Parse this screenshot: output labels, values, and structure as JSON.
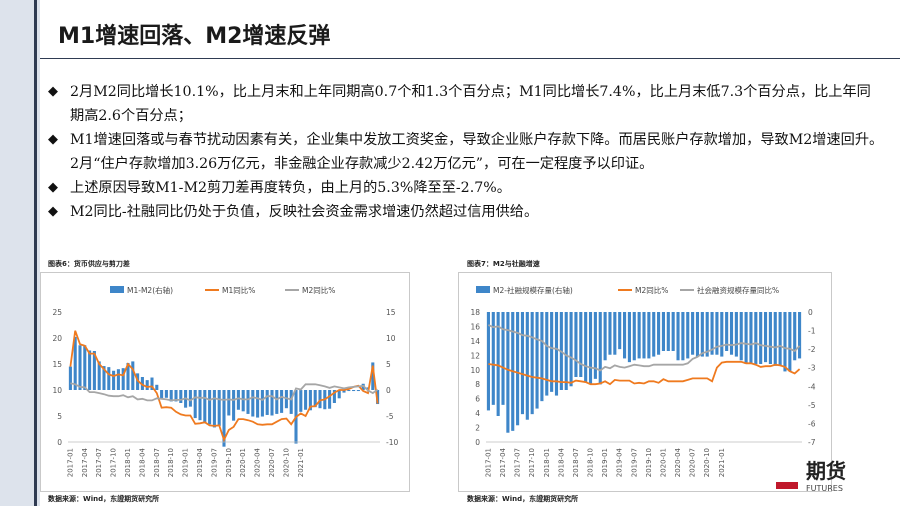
{
  "slide": {
    "title": "M1增速回落、M2增速反弹",
    "bullets": [
      "2月M2同比增长10.1%，比上月末和上年同期高0.7个和1.3个百分点；M1同比增长7.4%，比上月末低7.3个百分点，比上年同期高2.6个百分点；",
      "M1增速回落或与春节扰动因素有关，企业集中发放工资奖金，导致企业账户存款下降。而居民账户存款增加，导致M2增速回升。2月“住户存款增加3.26万亿元，非金融企业存款减少2.42万亿元”，可在一定程度予以印证。",
      "上述原因导致M1-M2剪刀差再度转负，由上月的5.3%降至至-2.7%。",
      "M2同比-社融同比仍处于负值，反映社会资金需求增速仍然超过信用供给。"
    ],
    "logo_text": "期货",
    "logo_subtext": "FUTURES"
  },
  "colors": {
    "bar": "#3e86c9",
    "orange": "#ef7a1f",
    "gray": "#a6a6a6",
    "border": "#c9c9c9"
  },
  "chart_data": [
    {
      "type": "bar+line",
      "caption": "图表6：货币供应与剪刀差",
      "source": "数据来源：Wind，东證期货研究所",
      "legend": [
        "M1-M2(右轴)",
        "M1同比%",
        "M2同比%"
      ],
      "x_ticks": [
        "2017-01",
        "2017-04",
        "2017-07",
        "2017-10",
        "2018-01",
        "2018-04",
        "2018-07",
        "2018-10",
        "2019-01",
        "2019-04",
        "2019-07",
        "2019-10",
        "2020-01",
        "2020-04",
        "2020-07",
        "2020-10",
        "2021-01"
      ],
      "ylim_left": [
        0,
        25
      ],
      "yticks_left": [
        0,
        5,
        10,
        15,
        20,
        25
      ],
      "ylim_right": [
        -10,
        15
      ],
      "yticks_right": [
        -10,
        -5,
        0,
        5,
        10,
        15
      ],
      "series": [
        {
          "name": "M1-M2(右轴)",
          "kind": "bar",
          "axis": "right",
          "values": [
            4.5,
            10.2,
            8.6,
            8.6,
            7.6,
            7.5,
            5.5,
            4.6,
            4.4,
            3.7,
            4.0,
            4.2,
            5.2,
            5.5,
            3.2,
            2.5,
            1.9,
            2.4,
            1.0,
            -1.7,
            -1.5,
            -2.2,
            -2.2,
            -2.5,
            -3.4,
            -3.2,
            -5.4,
            -5.8,
            -6.4,
            -6.6,
            -7.2,
            -6.9,
            -10.9,
            -4.9,
            -5.9,
            -3.8,
            -4.1,
            -4.6,
            -5.1,
            -5.3,
            -5.1,
            -4.8,
            -4.9,
            -4.6,
            -4.4,
            -3.5,
            -4.6,
            -10.3,
            -4.2,
            -3.8,
            -3.9,
            -3.3,
            -3.5,
            -3.7,
            -3.6,
            -2.5,
            -1.6,
            -0.5,
            -0.2,
            -0.2,
            -0.2,
            1.2,
            0.5,
            5.3,
            -2.7
          ]
        },
        {
          "name": "M1同比%",
          "kind": "line",
          "axis": "left",
          "values": [
            14.5,
            21.4,
            18.8,
            18.5,
            17.0,
            17.0,
            15.0,
            14.0,
            13.0,
            12.7,
            13.0,
            12.8,
            15.0,
            14.0,
            11.8,
            11.0,
            10.6,
            10.7,
            9.4,
            6.6,
            6.7,
            6.6,
            5.8,
            5.3,
            5.1,
            5.1,
            3.5,
            3.6,
            3.8,
            3.2,
            3.1,
            3.2,
            0.4,
            2.3,
            2.9,
            4.4,
            4.4,
            4.2,
            3.9,
            3.4,
            3.3,
            3.4,
            3.4,
            3.9,
            4.4,
            4.5,
            3.4,
            4.8,
            5.5,
            5.0,
            6.8,
            6.9,
            8.0,
            8.2,
            8.8,
            9.5,
            10.0,
            10.0,
            10.2,
            10.6,
            10.8,
            9.8,
            9.4,
            14.7,
            7.4
          ]
        },
        {
          "name": "M2同比%",
          "kind": "line",
          "axis": "left",
          "values": [
            11.3,
            11.1,
            10.6,
            10.5,
            9.6,
            9.6,
            9.4,
            9.2,
            8.9,
            8.8,
            8.8,
            9.0,
            8.6,
            8.8,
            8.2,
            8.3,
            8.0,
            8.0,
            8.4,
            8.3,
            8.2,
            8.0,
            8.1,
            8.1,
            8.4,
            8.0,
            8.6,
            8.5,
            8.5,
            8.1,
            8.4,
            8.2,
            8.1,
            8.2,
            8.1,
            8.4,
            8.2,
            8.2,
            8.6,
            8.4,
            8.1,
            8.8,
            8.8,
            8.2,
            8.7,
            8.4,
            8.2,
            10.3,
            10.1,
            11.1,
            11.1,
            11.1,
            10.9,
            10.7,
            10.4,
            10.7,
            10.5,
            10.3,
            10.5,
            10.6,
            10.7,
            10.8,
            9.9,
            9.4,
            10.1
          ]
        }
      ]
    },
    {
      "type": "bar+line",
      "caption": "图表7：M2与社融增速",
      "source": "数据来源：Wind，东證期货研究所",
      "legend": [
        "M2-社融规模存量(右轴)",
        "M2同比%",
        "社会融资规模存量同比%"
      ],
      "x_ticks": [
        "2017-01",
        "2017-04",
        "2017-07",
        "2017-10",
        "2018-01",
        "2018-04",
        "2018-07",
        "2018-10",
        "2019-01",
        "2019-04",
        "2019-07",
        "2019-10",
        "2020-01",
        "2020-04",
        "2020-07",
        "2020-10",
        "2021-01"
      ],
      "ylim_left": [
        0,
        18
      ],
      "yticks_left": [
        0,
        2,
        4,
        6,
        8,
        10,
        12,
        14,
        16,
        18
      ],
      "ylim_right": [
        -7,
        0
      ],
      "yticks_right": [
        -7,
        -6,
        -5,
        -4,
        -3,
        -2,
        -1,
        0
      ],
      "series": [
        {
          "name": "M2-社融规模存量(右轴)",
          "kind": "bar",
          "axis": "right",
          "values": [
            -5.3,
            -5.0,
            -5.6,
            -5.0,
            -6.5,
            -6.4,
            -6.1,
            -5.5,
            -5.8,
            -5.5,
            -5.2,
            -4.8,
            -4.5,
            -4.3,
            -4.5,
            -4.2,
            -4.2,
            -4.0,
            -3.5,
            -3.5,
            -3.8,
            -3.9,
            -3.6,
            -3.9,
            -2.6,
            -2.3,
            -2.3,
            -2.0,
            -2.5,
            -2.7,
            -2.6,
            -2.5,
            -2.5,
            -2.5,
            -2.4,
            -2.3,
            -2.1,
            -2.1,
            -2.1,
            -2.6,
            -2.6,
            -2.5,
            -2.3,
            -2.4,
            -2.4,
            -2.4,
            -2.3,
            -2.3,
            -2.4,
            -2.1,
            -2.3,
            -2.4,
            -2.6,
            -2.8,
            -2.8,
            -2.8,
            -2.8,
            -2.7,
            -2.8,
            -2.9,
            -2.9,
            -3.2,
            -3.2,
            -2.6,
            -2.5
          ]
        },
        {
          "name": "M2同比%",
          "kind": "line",
          "axis": "left",
          "values": [
            10.8,
            10.7,
            10.6,
            10.3,
            10.0,
            9.8,
            9.6,
            9.4,
            9.2,
            9.0,
            8.9,
            8.8,
            8.6,
            8.4,
            8.4,
            8.3,
            8.3,
            8.2,
            8.5,
            8.4,
            8.3,
            8.0,
            8.0,
            8.1,
            8.4,
            8.0,
            8.6,
            8.5,
            8.5,
            8.5,
            8.1,
            8.2,
            8.1,
            8.4,
            8.4,
            8.2,
            8.7,
            8.4,
            8.4,
            8.4,
            8.4,
            8.6,
            8.8,
            8.8,
            8.8,
            8.8,
            8.4,
            10.3,
            11.0,
            11.1,
            11.1,
            11.1,
            11.1,
            10.9,
            10.9,
            10.7,
            10.4,
            10.5,
            10.5,
            10.7,
            10.6,
            10.4,
            9.8,
            9.5,
            10.1
          ]
        },
        {
          "name": "社会融资规模存量同比%",
          "kind": "line",
          "axis": "left",
          "values": [
            16.2,
            15.9,
            16.0,
            15.6,
            15.5,
            15.3,
            15.1,
            14.8,
            14.7,
            14.5,
            14.2,
            14.0,
            13.3,
            13.0,
            12.9,
            12.5,
            12.0,
            11.7,
            11.3,
            10.8,
            10.5,
            10.3,
            10.2,
            9.9,
            10.4,
            10.2,
            10.6,
            10.4,
            10.3,
            10.5,
            10.7,
            10.6,
            10.5,
            10.5,
            10.7,
            10.7,
            10.7,
            10.7,
            10.7,
            10.7,
            10.7,
            10.9,
            11.5,
            11.8,
            12.3,
            12.5,
            12.8,
            13.2,
            13.3,
            13.5,
            13.4,
            13.5,
            13.7,
            13.6,
            13.5,
            13.7,
            13.4,
            13.3,
            13.2,
            13.1,
            13.3,
            13.0,
            12.9,
            12.6,
            13.3
          ]
        }
      ]
    }
  ]
}
